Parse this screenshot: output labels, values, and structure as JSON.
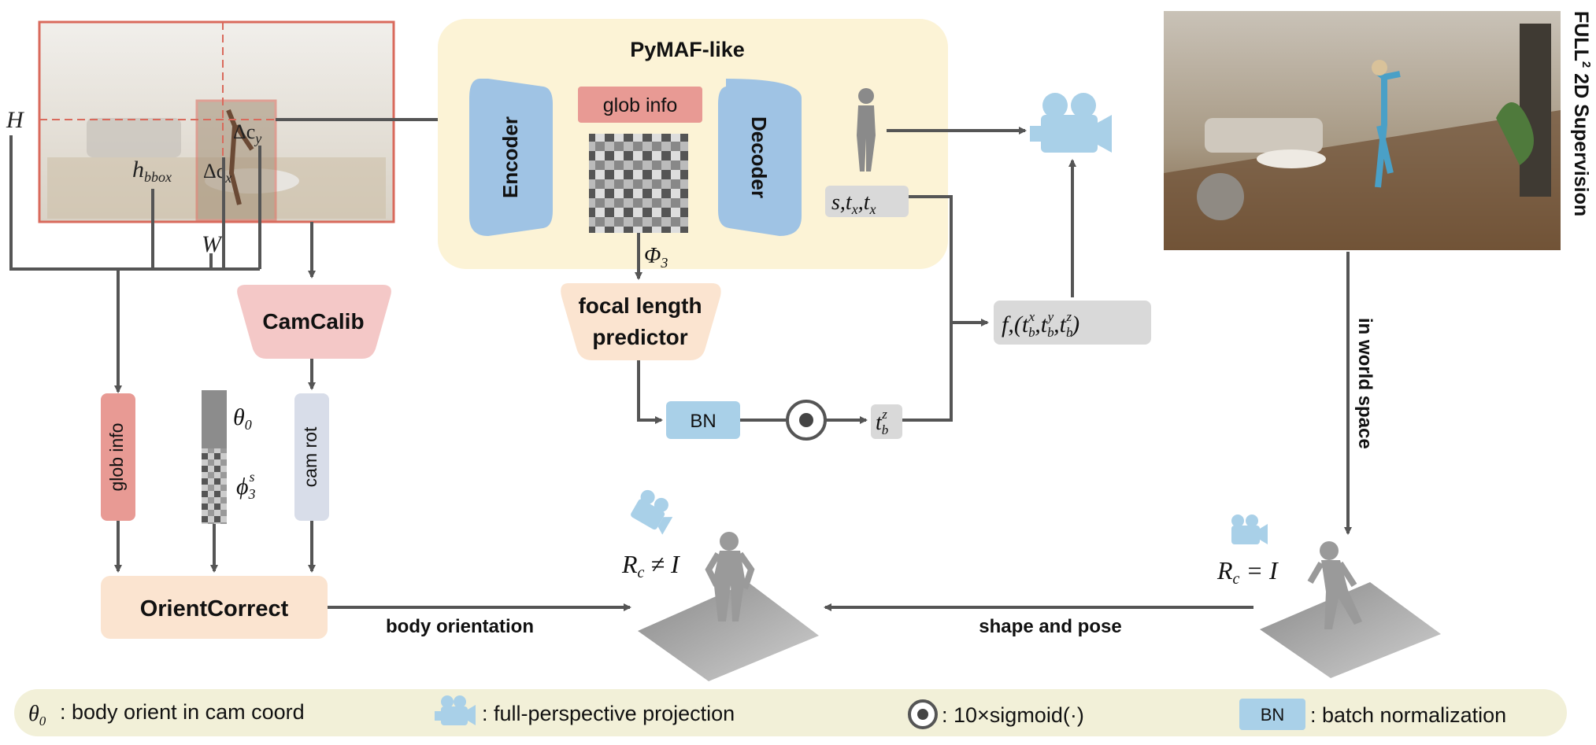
{
  "pymaf": {
    "title": "PyMAF-like",
    "encoder": "Encoder",
    "decoder": "Decoder",
    "glob_info": "glob info",
    "phi3": "Φ",
    "phi3_sub": "3",
    "params_s": "s,t",
    "params_x1": "x",
    "params_t2": ",t",
    "params_x2": "x"
  },
  "image_labels": {
    "H": "H",
    "W": "W",
    "h": "h",
    "h_sub": "bbox",
    "dcy": "Δc",
    "dcy_sub": "y",
    "dcx": "Δc",
    "dcx_sub": "x"
  },
  "camcalib": "CamCalib",
  "focal_predictor": [
    "focal length",
    "predictor"
  ],
  "bn": "BN",
  "tbz": "t",
  "tbz_sub": "b",
  "tbz_sup": "z",
  "f_params": {
    "f": "f",
    "open": ",(t",
    "b1": "b",
    "x": "x",
    "c1": ",t",
    "b2": "b",
    "y": "y",
    "c2": ",t",
    "b3": "b",
    "z": "z",
    "close": ")"
  },
  "left_inputs": {
    "glob_info": "glob info",
    "cam_rot": "cam rot",
    "theta": "θ",
    "theta_sub": "0",
    "phi": "ϕ",
    "phi_sub": "3",
    "phi_sup": "s"
  },
  "orient_correct": "OrientCorrect",
  "body_orientation": "body orientation",
  "shape_and_pose": "shape and pose",
  "rc_neq": "R",
  "rc_neq_sub": "c",
  "rc_neq_rest": " ≠ I",
  "rc_eq": "R",
  "rc_eq_sub": "c",
  "rc_eq_rest": " = I",
  "full2": "FULL",
  "full2_sup": "2",
  "full2_rest": " 2D Supervision",
  "in_world_space": "in world space",
  "legend": {
    "theta": "θ",
    "theta_sub": "0",
    "theta_text": ": body orient in cam coord",
    "camera_text": ": full-perspective projection",
    "sigmoid_text": ": 10×sigmoid(·)",
    "bn_label": "BN",
    "bn_text": ": batch normalization"
  },
  "colors": {
    "pymaf_bg": "#fcf3d6",
    "encoder_blue": "#9fc3e4",
    "glob_pink": "#e89a94",
    "cam_blue": "#a9d0e8",
    "orient_bg": "#fbe4d0",
    "camcalib_pink": "#f4c8c7",
    "arrow": "#555555",
    "legend_bg": "#f2f0d8"
  }
}
